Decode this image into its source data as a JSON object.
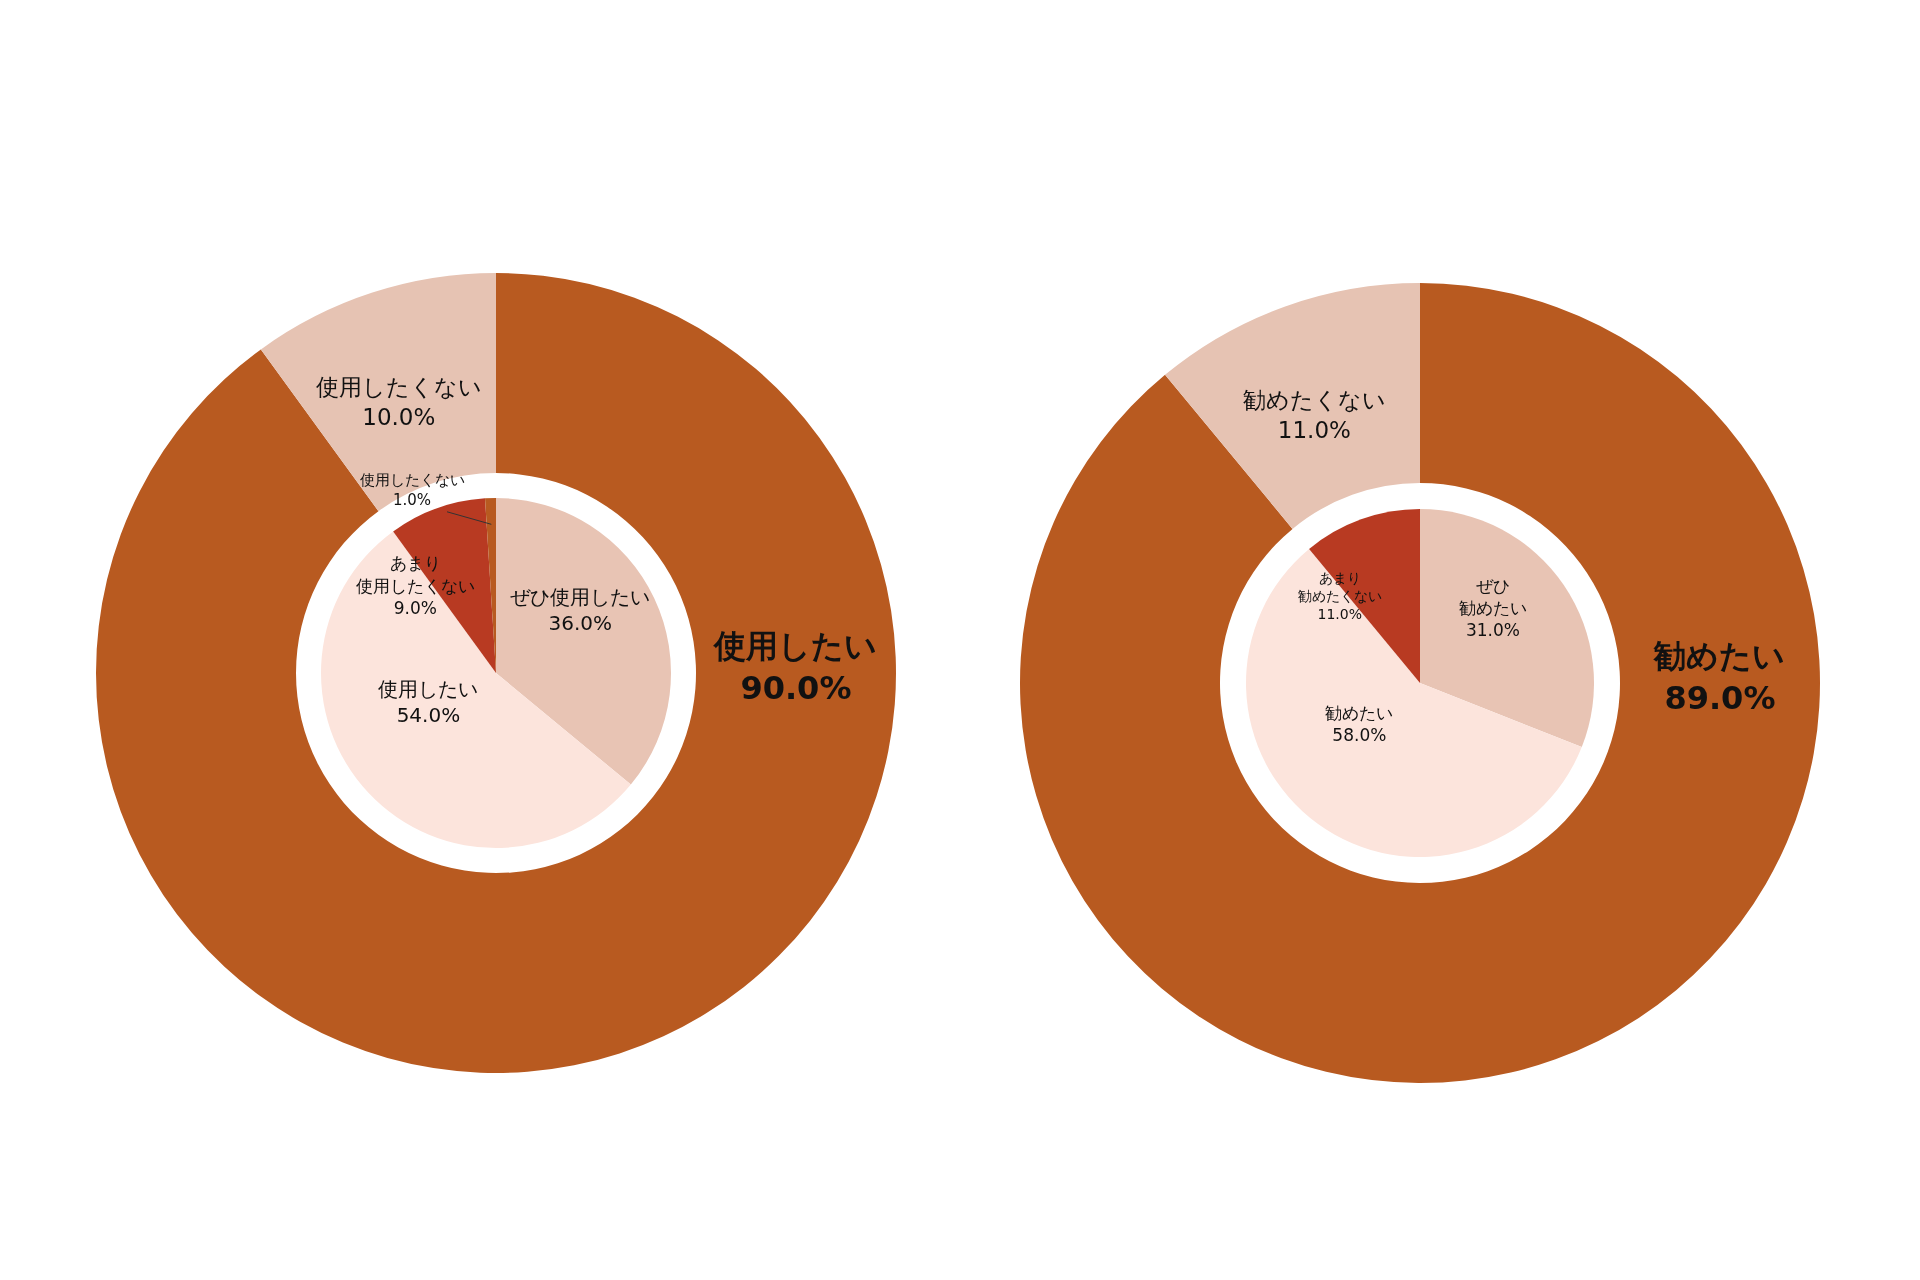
{
  "chart_data": [
    {
      "type": "donut",
      "categories": [
        "使用したい",
        "使用したくない"
      ],
      "values": [
        90,
        10
      ],
      "colors": [
        "#b85a20",
        "#e6c3b3"
      ],
      "value_labels": [
        "90.0%",
        "10.0%"
      ]
    },
    {
      "type": "pie",
      "categories": [
        "ぜひ使用したい",
        "使用したい",
        "あまり使用したくない",
        "使用したくない"
      ],
      "values": [
        36,
        54,
        9,
        1
      ],
      "colors": [
        "#e8c4b4",
        "#fce4dc",
        "#b83a22",
        "#b85a20"
      ],
      "value_labels": [
        "36.0%",
        "54.0%",
        "9.0%",
        "1.0%"
      ]
    },
    {
      "type": "donut",
      "categories": [
        "勧めたい",
        "勧めたくない"
      ],
      "values": [
        89,
        11
      ],
      "colors": [
        "#b85a20",
        "#e6c3b3"
      ],
      "value_labels": [
        "89.0%",
        "11.0%"
      ]
    },
    {
      "type": "pie",
      "categories": [
        "ぜひ勧めたい",
        "勧めたい",
        "あまり勧めたくない"
      ],
      "values": [
        31,
        58,
        11
      ],
      "colors": [
        "#e8c4b4",
        "#fce4dc",
        "#b83a22"
      ],
      "value_labels": [
        "31.0%",
        "58.0%",
        "11.0%"
      ]
    }
  ]
}
